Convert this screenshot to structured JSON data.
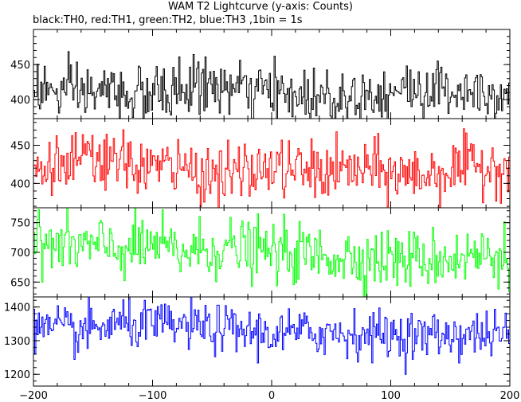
{
  "title": "WAM T2 Lightcurve (y-axis: Counts)",
  "subtitle": "black:TH0, red:TH1, green:TH2, blue:TH3 ,1bin = 1s",
  "chart_data": {
    "type": "line",
    "x": {
      "min": -200,
      "max": 200,
      "step": 1,
      "ticks": [
        -200,
        -100,
        0,
        100,
        200
      ]
    },
    "panels": [
      {
        "name": "TH0",
        "color": "#000000",
        "ylim": [
          373,
          500
        ],
        "yticks": [
          400,
          450
        ],
        "mean": 410,
        "noise": 20,
        "trend": [
          [
            -200,
            420
          ],
          [
            -180,
            408
          ],
          [
            -140,
            412
          ],
          [
            -100,
            405
          ],
          [
            -60,
            422
          ],
          [
            -20,
            412
          ],
          [
            20,
            406
          ],
          [
            60,
            405
          ],
          [
            100,
            412
          ],
          [
            140,
            415
          ],
          [
            200,
            412
          ]
        ]
      },
      {
        "name": "TH1",
        "color": "#ff0000",
        "ylim": [
          368,
          485
        ],
        "yticks": [
          400,
          450
        ],
        "mean": 418,
        "noise": 19,
        "trend": [
          [
            -200,
            418
          ],
          [
            -160,
            430
          ],
          [
            -120,
            425
          ],
          [
            -80,
            420
          ],
          [
            -40,
            410
          ],
          [
            0,
            420
          ],
          [
            40,
            415
          ],
          [
            80,
            418
          ],
          [
            120,
            410
          ],
          [
            160,
            420
          ],
          [
            200,
            425
          ]
        ]
      },
      {
        "name": "TH2",
        "color": "#00ff00",
        "ylim": [
          625,
          775
        ],
        "yticks": [
          650,
          700,
          750
        ],
        "mean": 705,
        "noise": 25,
        "trend": [
          [
            -200,
            715
          ],
          [
            -160,
            710
          ],
          [
            -120,
            705
          ],
          [
            -100,
            712
          ],
          [
            -80,
            700
          ],
          [
            -40,
            708
          ],
          [
            0,
            700
          ],
          [
            40,
            695
          ],
          [
            80,
            690
          ],
          [
            120,
            688
          ],
          [
            160,
            692
          ],
          [
            200,
            698
          ]
        ]
      },
      {
        "name": "TH3",
        "color": "#0000ff",
        "ylim": [
          1165,
          1430
        ],
        "yticks": [
          1200,
          1300,
          1400
        ],
        "mean": 1335,
        "noise": 35,
        "trend": [
          [
            -200,
            1335
          ],
          [
            -160,
            1325
          ],
          [
            -130,
            1350
          ],
          [
            -100,
            1345
          ],
          [
            -60,
            1340
          ],
          [
            -30,
            1330
          ],
          [
            0,
            1320
          ],
          [
            40,
            1325
          ],
          [
            80,
            1320
          ],
          [
            120,
            1315
          ],
          [
            160,
            1318
          ],
          [
            200,
            1320
          ]
        ]
      }
    ]
  }
}
